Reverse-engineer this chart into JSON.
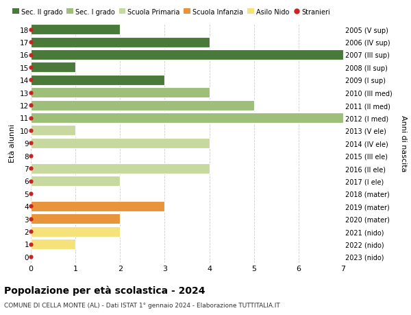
{
  "ages": [
    0,
    1,
    2,
    3,
    4,
    5,
    6,
    7,
    8,
    9,
    10,
    11,
    12,
    13,
    14,
    15,
    16,
    17,
    18
  ],
  "right_labels": [
    "2023 (nido)",
    "2022 (nido)",
    "2021 (nido)",
    "2020 (mater)",
    "2019 (mater)",
    "2018 (mater)",
    "2017 (I ele)",
    "2016 (II ele)",
    "2015 (III ele)",
    "2014 (IV ele)",
    "2013 (V ele)",
    "2012 (I med)",
    "2011 (II med)",
    "2010 (III med)",
    "2009 (I sup)",
    "2008 (II sup)",
    "2007 (III sup)",
    "2006 (IV sup)",
    "2005 (V sup)"
  ],
  "values": [
    0,
    1,
    2,
    2,
    3,
    0,
    2,
    4,
    0,
    4,
    1,
    7,
    5,
    4,
    3,
    1,
    7,
    4,
    2
  ],
  "colors": [
    "#f5e27a",
    "#f5e27a",
    "#f5e27a",
    "#e8943a",
    "#e8943a",
    "#e8943a",
    "#c8d9a0",
    "#c8d9a0",
    "#c8d9a0",
    "#c8d9a0",
    "#c8d9a0",
    "#9dbf7a",
    "#9dbf7a",
    "#9dbf7a",
    "#4a7a3a",
    "#4a7a3a",
    "#4a7a3a",
    "#4a7a3a",
    "#4a7a3a"
  ],
  "stranieri_dot_color": "#cc2222",
  "legend_items": [
    {
      "label": "Sec. II grado",
      "color": "#4a7a3a"
    },
    {
      "label": "Sec. I grado",
      "color": "#9dbf7a"
    },
    {
      "label": "Scuola Primaria",
      "color": "#c8d9a0"
    },
    {
      "label": "Scuola Infanzia",
      "color": "#e8943a"
    },
    {
      "label": "Asilo Nido",
      "color": "#f5e27a"
    },
    {
      "label": "Stranieri",
      "color": "#cc2222"
    }
  ],
  "ylabel": "Età alunni",
  "right_ylabel": "Anni di nascita",
  "title": "Popolazione per età scolastica - 2024",
  "subtitle": "COMUNE DI CELLA MONTE (AL) - Dati ISTAT 1° gennaio 2024 - Elaborazione TUTTITALIA.IT",
  "xlim": [
    0,
    7
  ],
  "ylim": [
    -0.5,
    18.5
  ],
  "background_color": "#ffffff",
  "bar_height": 0.82,
  "grid_color": "#cccccc"
}
